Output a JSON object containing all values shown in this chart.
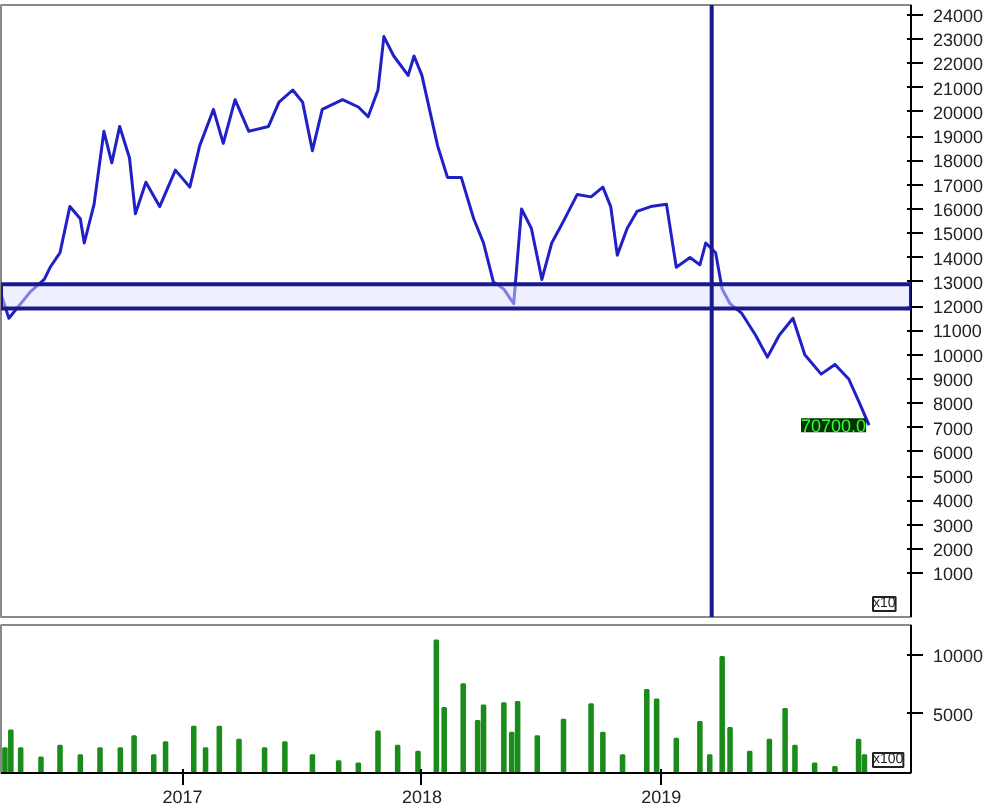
{
  "chart_data": [
    {
      "type": "line",
      "xlim": [
        "2016-03-30",
        "2020-01-17"
      ],
      "ylim": [
        -800,
        24400
      ],
      "yticks": [
        1000,
        2000,
        3000,
        4000,
        5000,
        6000,
        7000,
        8000,
        9000,
        10000,
        11000,
        12000,
        13000,
        14000,
        15000,
        16000,
        17000,
        18000,
        19000,
        20000,
        21000,
        22000,
        23000,
        24000
      ],
      "tick_labels": "y",
      "grid": false,
      "x": [
        "2016-03-30",
        "2016-04-11",
        "2016-05-14",
        "2016-06-04",
        "2016-06-13",
        "2016-06-28",
        "2016-07-13",
        "2016-07-29",
        "2016-08-04",
        "2016-08-19",
        "2016-09-03",
        "2016-09-15",
        "2016-09-27",
        "2016-10-12",
        "2016-10-21",
        "2016-11-06",
        "2016-11-27",
        "2016-12-21",
        "2017-01-12",
        "2017-01-27",
        "2017-02-17",
        "2017-03-04",
        "2017-03-22",
        "2017-04-12",
        "2017-05-12",
        "2017-05-28",
        "2017-06-18",
        "2017-07-03",
        "2017-07-18",
        "2017-08-02",
        "2017-09-02",
        "2017-09-26",
        "2017-10-11",
        "2017-10-26",
        "2017-11-04",
        "2017-11-19",
        "2017-12-11",
        "2017-12-20",
        "2018-01-01",
        "2018-01-25",
        "2018-02-09",
        "2018-03-02",
        "2018-03-21",
        "2018-04-05",
        "2018-04-20",
        "2018-05-06",
        "2018-05-21",
        "2018-06-02",
        "2018-06-17",
        "2018-07-03",
        "2018-07-18",
        "2018-08-05",
        "2018-08-26",
        "2018-09-16",
        "2018-10-04",
        "2018-10-16",
        "2018-10-26",
        "2018-11-10",
        "2018-11-25",
        "2018-12-16",
        "2019-01-09",
        "2019-01-24",
        "2019-02-14",
        "2019-03-01",
        "2019-03-10",
        "2019-03-25",
        "2019-04-04",
        "2019-04-16",
        "2019-05-04",
        "2019-05-25",
        "2019-06-12",
        "2019-06-30",
        "2019-07-21",
        "2019-08-08",
        "2019-09-02",
        "2019-09-23",
        "2019-10-14",
        "2019-10-29",
        "2019-11-14"
      ],
      "series": [
        {
          "color": "#2020c8",
          "values": [
            12500,
            11500,
            12600,
            13100,
            13600,
            14200,
            16100,
            15600,
            14600,
            16200,
            19200,
            17900,
            19400,
            18100,
            15800,
            17100,
            16100,
            17600,
            16900,
            18600,
            20100,
            18700,
            20500,
            19200,
            19400,
            20400,
            20900,
            20400,
            18400,
            20100,
            20500,
            20200,
            19800,
            20900,
            23100,
            22300,
            21500,
            22300,
            21500,
            18600,
            17300,
            17300,
            15600,
            14600,
            13000,
            12700,
            12100,
            16000,
            15200,
            13100,
            14600,
            15500,
            16600,
            16500,
            16900,
            16100,
            14100,
            15200,
            15900,
            16100,
            16200,
            13600,
            14000,
            13700,
            14600,
            14200,
            12700,
            12100,
            11700,
            10800,
            9900,
            10800,
            11500,
            10000,
            9200,
            9600,
            9000,
            8100,
            7100
          ]
        }
      ],
      "bands": [
        {
          "axis": "y",
          "from": 11900,
          "to": 12900,
          "color": "#1a1a8c"
        }
      ],
      "ref_lines": [
        {
          "axis": "x",
          "value": "2019-03-19",
          "color": "#1a1a8c"
        }
      ],
      "annotations": [
        {
          "text": "70700.0",
          "x": "2019-11-14",
          "y": 7100
        },
        "x10"
      ]
    },
    {
      "type": "bar",
      "xlim": [
        "2016-03-30",
        "2020-01-17"
      ],
      "ylim": [
        0,
        12500
      ],
      "yticks": [
        5000,
        10000
      ],
      "xticks": [
        {
          "value": "2017-01-01",
          "label": "2017"
        },
        {
          "value": "2018-01-01",
          "label": "2018"
        },
        {
          "value": "2019-01-01",
          "label": "2019"
        }
      ],
      "grid": false,
      "color": "#1a8c1a",
      "x": [
        "2016-04-05",
        "2016-04-14",
        "2016-04-29",
        "2016-05-30",
        "2016-06-28",
        "2016-07-29",
        "2016-08-28",
        "2016-09-28",
        "2016-10-19",
        "2016-11-18",
        "2016-12-06",
        "2017-01-18",
        "2017-02-05",
        "2017-02-26",
        "2017-03-28",
        "2017-05-06",
        "2017-06-06",
        "2017-07-18",
        "2017-08-27",
        "2017-09-26",
        "2017-10-26",
        "2017-11-25",
        "2017-12-26",
        "2018-01-23",
        "2018-02-04",
        "2018-03-05",
        "2018-03-27",
        "2018-04-05",
        "2018-05-06",
        "2018-05-18",
        "2018-05-27",
        "2018-06-26",
        "2018-08-05",
        "2018-09-16",
        "2018-10-04",
        "2018-11-03",
        "2018-12-10",
        "2018-12-25",
        "2019-01-24",
        "2019-03-01",
        "2019-03-16",
        "2019-04-04",
        "2019-04-16",
        "2019-05-16",
        "2019-06-15",
        "2019-07-09",
        "2019-07-24",
        "2019-08-23",
        "2019-09-23",
        "2019-10-29",
        "2019-11-07"
      ],
      "values": [
        2100,
        3600,
        2100,
        1300,
        2300,
        1500,
        2100,
        2100,
        3100,
        1500,
        2600,
        3900,
        2100,
        3900,
        2800,
        2100,
        2600,
        1500,
        1000,
        800,
        3500,
        2300,
        1800,
        11200,
        5500,
        7500,
        4400,
        5700,
        5900,
        3400,
        6000,
        3100,
        4500,
        5800,
        3400,
        1500,
        7000,
        6200,
        2900,
        4300,
        1500,
        9800,
        3800,
        1800,
        2800,
        5400,
        2300,
        800,
        500,
        2800,
        1500
      ],
      "annotations": [
        "x100"
      ]
    }
  ]
}
